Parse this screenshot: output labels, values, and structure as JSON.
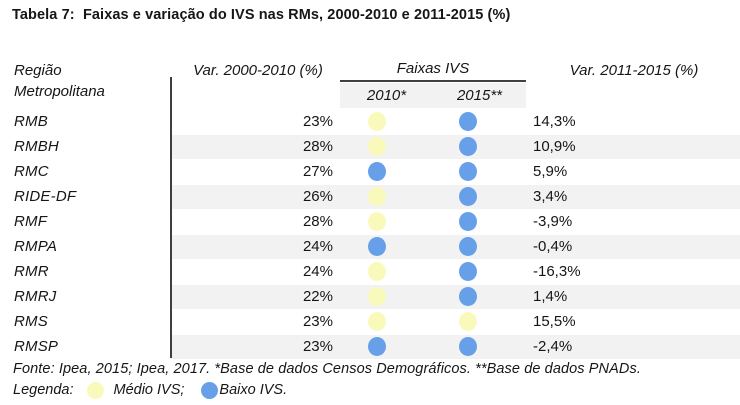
{
  "title": "Tabela 7:  Faixas e variação do IVS nas RMs, 2000-2010 e 2011-2015 (%)",
  "header": {
    "region_line1": "Região",
    "region_line2": "Metropolitana",
    "var_2000_2010": "Var. 2000-2010 (%)",
    "faixas_group": "Faixas IVS",
    "sub_2010": "2010*",
    "sub_2015": "2015**",
    "var_2011_2015": "Var. 2011-2015 (%)"
  },
  "rows": [
    {
      "region": "RMB",
      "var_2000_2010": "23%",
      "ivs_2010": "medio",
      "ivs_2015": "baixo",
      "var_2011_2015": "14,3%"
    },
    {
      "region": "RMBH",
      "var_2000_2010": "28%",
      "ivs_2010": "medio",
      "ivs_2015": "baixo",
      "var_2011_2015": "10,9%"
    },
    {
      "region": "RMC",
      "var_2000_2010": "27%",
      "ivs_2010": "baixo",
      "ivs_2015": "baixo",
      "var_2011_2015": "5,9%"
    },
    {
      "region": "RIDE-DF",
      "var_2000_2010": "26%",
      "ivs_2010": "medio",
      "ivs_2015": "baixo",
      "var_2011_2015": "3,4%"
    },
    {
      "region": "RMF",
      "var_2000_2010": "28%",
      "ivs_2010": "medio",
      "ivs_2015": "baixo",
      "var_2011_2015": "-3,9%"
    },
    {
      "region": "RMPA",
      "var_2000_2010": "24%",
      "ivs_2010": "baixo",
      "ivs_2015": "baixo",
      "var_2011_2015": "-0,4%"
    },
    {
      "region": "RMR",
      "var_2000_2010": "24%",
      "ivs_2010": "medio",
      "ivs_2015": "baixo",
      "var_2011_2015": "-16,3%"
    },
    {
      "region": "RMRJ",
      "var_2000_2010": "22%",
      "ivs_2010": "medio",
      "ivs_2015": "baixo",
      "var_2011_2015": "1,4%"
    },
    {
      "region": "RMS",
      "var_2000_2010": "23%",
      "ivs_2010": "medio",
      "ivs_2015": "medio",
      "var_2011_2015": "15,5%"
    },
    {
      "region": "RMSP",
      "var_2000_2010": "23%",
      "ivs_2010": "baixo",
      "ivs_2015": "baixo",
      "var_2011_2015": "-2,4%"
    }
  ],
  "footer": {
    "fonte": "Fonte: Ipea, 2015; Ipea, 2017. *Base de dados Censos Demográficos. **Base de dados PNADs.",
    "legend_label": "Legenda:",
    "legend_items": [
      {
        "key": "medio",
        "label": "Médio IVS;"
      },
      {
        "key": "baixo",
        "label": "Baixo IVS."
      }
    ]
  },
  "colors": {
    "medio": "#FAF9BC",
    "baixo": "#67A0E8",
    "stripe": "#F2F2F2",
    "header_box": "#F2F2F2",
    "divider": "#3F3F3F"
  }
}
